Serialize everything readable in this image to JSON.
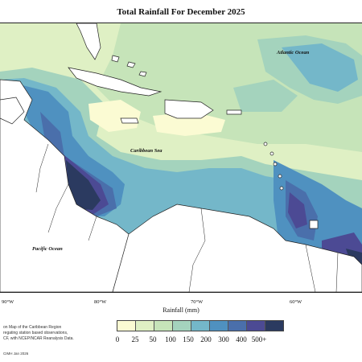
{
  "title": "Total Rainfall For December 2025",
  "labels": {
    "atlantic": "Atlantic Ocean",
    "caribbean": "Caribbean Sea",
    "pacific": "Pacific Ocean"
  },
  "longitudes": [
    "90°W",
    "80°W",
    "70°W",
    "60°W"
  ],
  "legend": {
    "title": "Rainfall (mm)",
    "ticks": [
      "0",
      "25",
      "50",
      "100",
      "150",
      "200",
      "300",
      "400",
      "500+"
    ],
    "colors": [
      "#fbfbd3",
      "#dff0c4",
      "#c6e4b9",
      "#a4d3bd",
      "#74b7c9",
      "#4f91c0",
      "#4a6fab",
      "#4c4a94",
      "#2b3a60"
    ]
  },
  "caption": [
    "on Map of the Caribbean Region",
    "regating station based observations,",
    "CF, with NCEP/NCAR Reanalysis Data."
  ],
  "credit": "CIMH Jan 2026"
}
